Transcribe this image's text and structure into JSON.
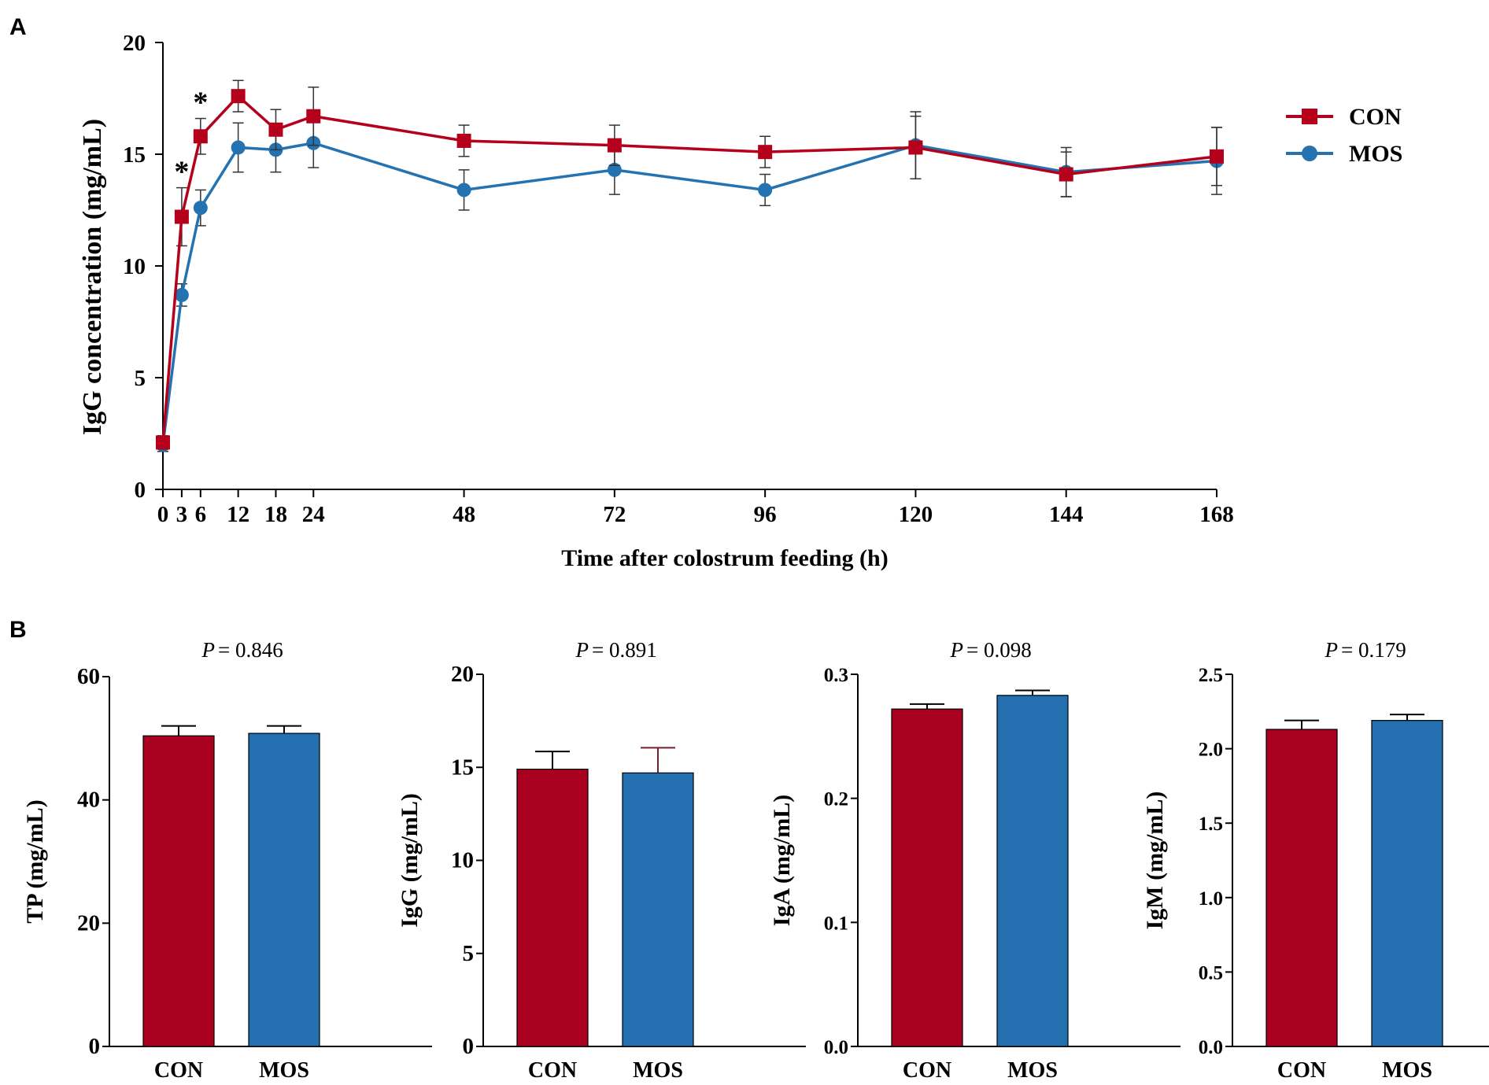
{
  "colors": {
    "con": "#B5001C",
    "mos": "#2473B0",
    "con_bar": "#A90020",
    "mos_bar": "#236FAF"
  },
  "chart_data": [
    {
      "panel_label": "A",
      "type": "line",
      "xlabel": "Time after colostrum feeding (h)",
      "ylabel": "IgG concentration (mg/mL)",
      "ylim": [
        0,
        20
      ],
      "yticks": [
        "0",
        "5",
        "10",
        "15",
        "20"
      ],
      "xticks": [
        "0",
        "3",
        "6",
        "12",
        "18",
        "24",
        "48",
        "72",
        "96",
        "120",
        "144",
        "168"
      ],
      "xlim": [
        0,
        168
      ],
      "legend_position": "top-right",
      "x": [
        0,
        3,
        6,
        12,
        18,
        24,
        48,
        72,
        96,
        120,
        144,
        168
      ],
      "series": [
        {
          "name": "CON",
          "marker": "square",
          "values": [
            2.1,
            12.2,
            15.8,
            17.6,
            16.1,
            16.7,
            15.6,
            15.4,
            15.1,
            15.3,
            14.1,
            14.9
          ],
          "errors": [
            0.3,
            1.3,
            0.8,
            0.7,
            0.9,
            1.3,
            0.7,
            0.9,
            0.7,
            1.4,
            1.0,
            1.3
          ]
        },
        {
          "name": "MOS",
          "marker": "circle",
          "values": [
            2.0,
            8.7,
            12.6,
            15.3,
            15.2,
            15.5,
            13.4,
            14.3,
            13.4,
            15.4,
            14.2,
            14.7
          ],
          "errors": [
            0.3,
            0.5,
            0.8,
            1.1,
            1.0,
            1.1,
            0.9,
            1.1,
            0.7,
            1.5,
            1.1,
            1.5
          ]
        }
      ],
      "annotations": [
        {
          "text": "*",
          "x": 3
        },
        {
          "text": "*",
          "x": 6
        }
      ]
    },
    {
      "panel_label": "B",
      "type": "bar",
      "p_prefix": "P",
      "p_value": "= 0.846",
      "ylabel": "TP (mg/mL)",
      "ylim": [
        0,
        60
      ],
      "yticks": [
        "0",
        "20",
        "40",
        "60"
      ],
      "categories": [
        "CON",
        "MOS"
      ],
      "values": [
        50.4,
        50.8
      ],
      "errors": [
        1.6,
        1.2
      ]
    },
    {
      "type": "bar",
      "p_prefix": "P",
      "p_value": "= 0.891",
      "ylabel": "IgG (mg/mL)",
      "ylim": [
        0,
        20
      ],
      "yticks": [
        "0",
        "5",
        "10",
        "15",
        "20"
      ],
      "categories": [
        "CON",
        "MOS"
      ],
      "values": [
        14.9,
        14.7
      ],
      "errors": [
        0.95,
        1.35
      ]
    },
    {
      "type": "bar",
      "p_prefix": "P",
      "p_value": "= 0.098",
      "ylabel": "IgA (mg/mL)",
      "ylim": [
        0,
        0.3
      ],
      "yticks": [
        "0.0",
        "0.1",
        "0.2",
        "0.3"
      ],
      "categories": [
        "CON",
        "MOS"
      ],
      "values": [
        0.272,
        0.283
      ],
      "errors": [
        0.004,
        0.004
      ]
    },
    {
      "type": "bar",
      "p_prefix": "P",
      "p_value": "= 0.179",
      "ylabel": "IgM (mg/mL)",
      "ylim": [
        0,
        2.5
      ],
      "yticks": [
        "0.0",
        "0.5",
        "1.0",
        "1.5",
        "2.0",
        "2.5"
      ],
      "categories": [
        "CON",
        "MOS"
      ],
      "values": [
        2.13,
        2.19
      ],
      "errors": [
        0.06,
        0.04
      ]
    }
  ]
}
